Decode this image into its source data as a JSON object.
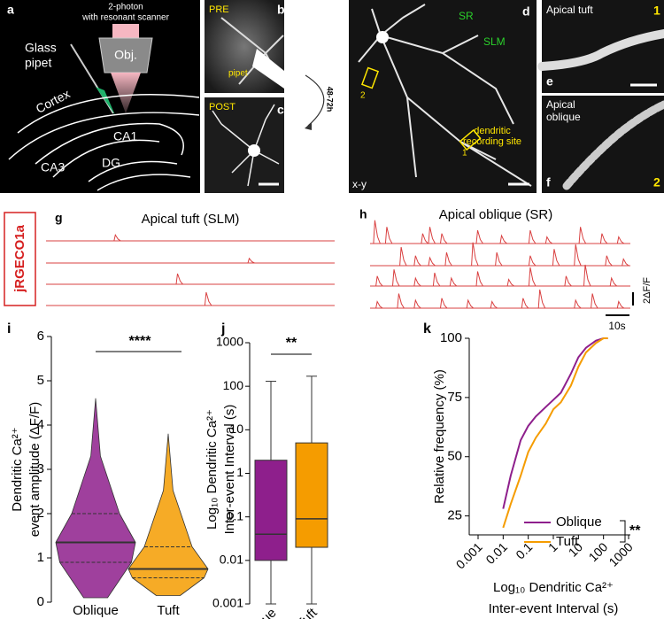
{
  "figure": {
    "panel_a": {
      "letter": "a",
      "scanner": [
        "2-photon",
        "with resonant scanner"
      ],
      "objective": "Obj.",
      "pipet": [
        "Glass",
        "pipet"
      ],
      "regions": [
        "Cortex",
        "CA1",
        "CA3",
        "DG"
      ]
    },
    "panel_b": {
      "letter": "b",
      "label": "PRE",
      "pipet": "pipet"
    },
    "arrow": "48-72h",
    "panel_c": {
      "letter": "c",
      "label": "POST"
    },
    "panel_d": {
      "letter": "d",
      "layers": [
        "SR",
        "SLM"
      ],
      "site": [
        "dendritic",
        "recording site"
      ],
      "rois": [
        "1",
        "2"
      ],
      "plane": "x-y"
    },
    "panel_e": {
      "letter": "e",
      "label": "Apical tuft",
      "roi": "1"
    },
    "panel_f": {
      "letter": "f",
      "label": [
        "Apical",
        "oblique"
      ],
      "roi": "2"
    },
    "indicator": "jRGECO1a",
    "panel_g": {
      "letter": "g",
      "title": "Apical tuft (SLM)",
      "traces": [
        {
          "t": [
            29
          ],
          "amp": [
            0.9
          ]
        },
        {
          "t": [
            85
          ],
          "amp": [
            0.7
          ]
        },
        {
          "t": [
            55
          ],
          "amp": [
            1.6
          ]
        },
        {
          "t": [
            67
          ],
          "amp": [
            2.0
          ]
        }
      ]
    },
    "panel_h": {
      "letter": "h",
      "title": "Apical oblique (SR)",
      "traces": [
        {
          "t": [
            2,
            7,
            22,
            25,
            30,
            45,
            55,
            67,
            74,
            88,
            97,
            104
          ],
          "amp": [
            3.5,
            2.5,
            1.5,
            2.5,
            1.5,
            2,
            1.2,
            2,
            1,
            2.5,
            1.5,
            1
          ]
        },
        {
          "t": [
            13,
            19,
            25,
            32,
            43,
            53,
            67,
            77,
            86,
            99,
            106
          ],
          "amp": [
            2.8,
            1.5,
            1.2,
            2,
            3.5,
            2,
            1.5,
            2.5,
            3.2,
            1.5,
            1
          ]
        },
        {
          "t": [
            3,
            10,
            19,
            27,
            34,
            45,
            58,
            67,
            82,
            90,
            101
          ],
          "amp": [
            1.5,
            2.5,
            1.2,
            2,
            1.2,
            2.2,
            1,
            2.8,
            1.5,
            3.2,
            1.2
          ]
        },
        {
          "t": [
            3,
            12,
            19,
            30,
            41,
            51,
            64,
            71,
            86,
            93,
            104
          ],
          "amp": [
            1,
            2.2,
            1.2,
            1.5,
            1.2,
            1,
            1.5,
            2.8,
            1.2,
            2.2,
            1
          ]
        }
      ]
    },
    "scale": {
      "time": "10s",
      "amplitude": "2ΔF/F"
    }
  },
  "chart_data": [
    {
      "type": "violin",
      "panel": "i",
      "ylabel": [
        "Dendritic Ca²⁺",
        "event amplitude (ΔF/F)"
      ],
      "categories": [
        "Oblique",
        "Tuft"
      ],
      "series": [
        {
          "name": "Oblique",
          "color": "#8e1f8c",
          "min": 0.1,
          "q1": 0.9,
          "median": 1.35,
          "q3": 2.0,
          "max": 4.6
        },
        {
          "name": "Tuft",
          "color": "#f59c00",
          "min": 0.15,
          "q1": 0.55,
          "median": 0.75,
          "q3": 1.25,
          "max": 3.8
        }
      ],
      "ylim": [
        0,
        6
      ],
      "yticks": [
        0,
        1,
        2,
        3,
        4,
        5,
        6
      ],
      "significance": "****"
    },
    {
      "type": "box",
      "panel": "j",
      "ylabel": [
        "Log₁₀ Dendritic Ca²⁺",
        "Inter-event Interval (s)"
      ],
      "categories": [
        "Oblique",
        "Tuft"
      ],
      "log_scale": true,
      "series": [
        {
          "name": "Oblique",
          "color": "#8e1f8c",
          "min": 0.001,
          "q1": 0.01,
          "median": 0.04,
          "q3": 2,
          "max": 130
        },
        {
          "name": "Tuft",
          "color": "#f59c00",
          "min": 0.001,
          "q1": 0.02,
          "median": 0.09,
          "q3": 5,
          "max": 170
        }
      ],
      "ylim": [
        0.001,
        1000
      ],
      "yticks": [
        0.001,
        0.01,
        0.1,
        1,
        10,
        100,
        1000
      ],
      "significance": "**"
    },
    {
      "type": "line",
      "panel": "k",
      "xlabel": [
        "Log₁₀ Dendritic Ca²⁺",
        "Inter-event Interval (s)"
      ],
      "ylabel": "Relative frequency (%)",
      "log_scale": "x",
      "x": [
        0.01,
        0.02,
        0.05,
        0.1,
        0.2,
        0.5,
        1,
        2,
        5,
        10,
        20,
        50,
        100,
        150
      ],
      "series": [
        {
          "name": "Oblique",
          "color": "#8e1f8c",
          "values": [
            28,
            42,
            57,
            63,
            67,
            71,
            74,
            77,
            85,
            92,
            96,
            99,
            100,
            100
          ]
        },
        {
          "name": "Tuft",
          "color": "#f59c00",
          "values": [
            20,
            30,
            42,
            52,
            58,
            64,
            70,
            73,
            80,
            88,
            94,
            98,
            100,
            100
          ]
        }
      ],
      "xlim": [
        0.001,
        1000
      ],
      "xticks": [
        0.001,
        0.01,
        0.1,
        1,
        10,
        100,
        1000
      ],
      "ylim": [
        17,
        100
      ],
      "yticks": [
        25,
        50,
        75,
        100
      ],
      "legend": "lower-right",
      "significance": "**"
    }
  ]
}
